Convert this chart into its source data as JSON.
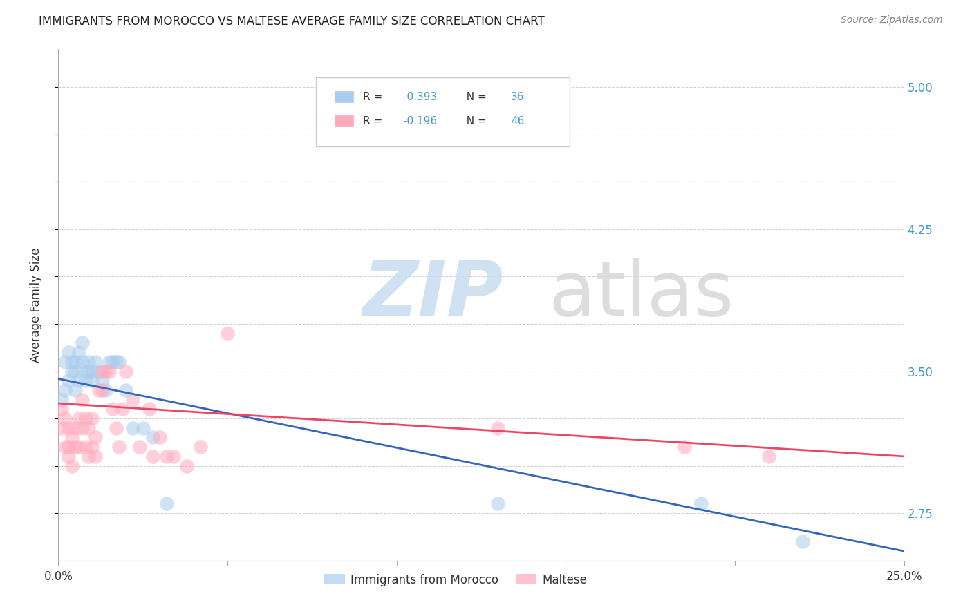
{
  "title": "IMMIGRANTS FROM MOROCCO VS MALTESE AVERAGE FAMILY SIZE CORRELATION CHART",
  "source": "Source: ZipAtlas.com",
  "ylabel": "Average Family Size",
  "ytick_labels_shown": [
    2.75,
    3.5,
    4.25,
    5.0
  ],
  "xlim": [
    0.0,
    0.25
  ],
  "ylim": [
    2.5,
    5.2
  ],
  "background_color": "#ffffff",
  "grid_color": "#cccccc",
  "blue_scatter_x": [
    0.001,
    0.002,
    0.002,
    0.003,
    0.003,
    0.004,
    0.004,
    0.005,
    0.005,
    0.005,
    0.006,
    0.006,
    0.007,
    0.007,
    0.008,
    0.008,
    0.009,
    0.009,
    0.01,
    0.01,
    0.011,
    0.012,
    0.013,
    0.014,
    0.015,
    0.016,
    0.017,
    0.018,
    0.02,
    0.022,
    0.025,
    0.028,
    0.032,
    0.13,
    0.19,
    0.22
  ],
  "blue_scatter_y": [
    3.35,
    3.4,
    3.55,
    3.45,
    3.6,
    3.5,
    3.55,
    3.55,
    3.5,
    3.4,
    3.45,
    3.6,
    3.55,
    3.65,
    3.5,
    3.45,
    3.5,
    3.55,
    3.5,
    3.45,
    3.55,
    3.5,
    3.45,
    3.4,
    3.55,
    3.55,
    3.55,
    3.55,
    3.4,
    3.2,
    3.2,
    3.15,
    2.8,
    2.8,
    2.8,
    2.6
  ],
  "pink_scatter_x": [
    0.001,
    0.001,
    0.002,
    0.002,
    0.003,
    0.003,
    0.003,
    0.004,
    0.004,
    0.005,
    0.005,
    0.006,
    0.006,
    0.007,
    0.007,
    0.008,
    0.008,
    0.009,
    0.009,
    0.01,
    0.01,
    0.011,
    0.011,
    0.012,
    0.013,
    0.013,
    0.014,
    0.015,
    0.016,
    0.017,
    0.018,
    0.019,
    0.02,
    0.022,
    0.024,
    0.027,
    0.028,
    0.03,
    0.032,
    0.034,
    0.038,
    0.042,
    0.05,
    0.13,
    0.185,
    0.21
  ],
  "pink_scatter_y": [
    3.3,
    3.2,
    3.25,
    3.1,
    3.2,
    3.1,
    3.05,
    3.15,
    3.0,
    3.2,
    3.1,
    3.25,
    3.1,
    3.35,
    3.2,
    3.25,
    3.1,
    3.2,
    3.05,
    3.25,
    3.1,
    3.15,
    3.05,
    3.4,
    3.5,
    3.4,
    3.5,
    3.5,
    3.3,
    3.2,
    3.1,
    3.3,
    3.5,
    3.35,
    3.1,
    3.3,
    3.05,
    3.15,
    3.05,
    3.05,
    3.0,
    3.1,
    3.7,
    3.2,
    3.1,
    3.05
  ],
  "blue_color": "#aaccee",
  "pink_color": "#ffaabb",
  "blue_line_color": "#3366bb",
  "pink_line_color": "#ee4466",
  "legend_label1": "Immigrants from Morocco",
  "legend_label2": "Maltese",
  "blue_R": -0.393,
  "blue_N": 36,
  "pink_R": -0.196,
  "pink_N": 46
}
